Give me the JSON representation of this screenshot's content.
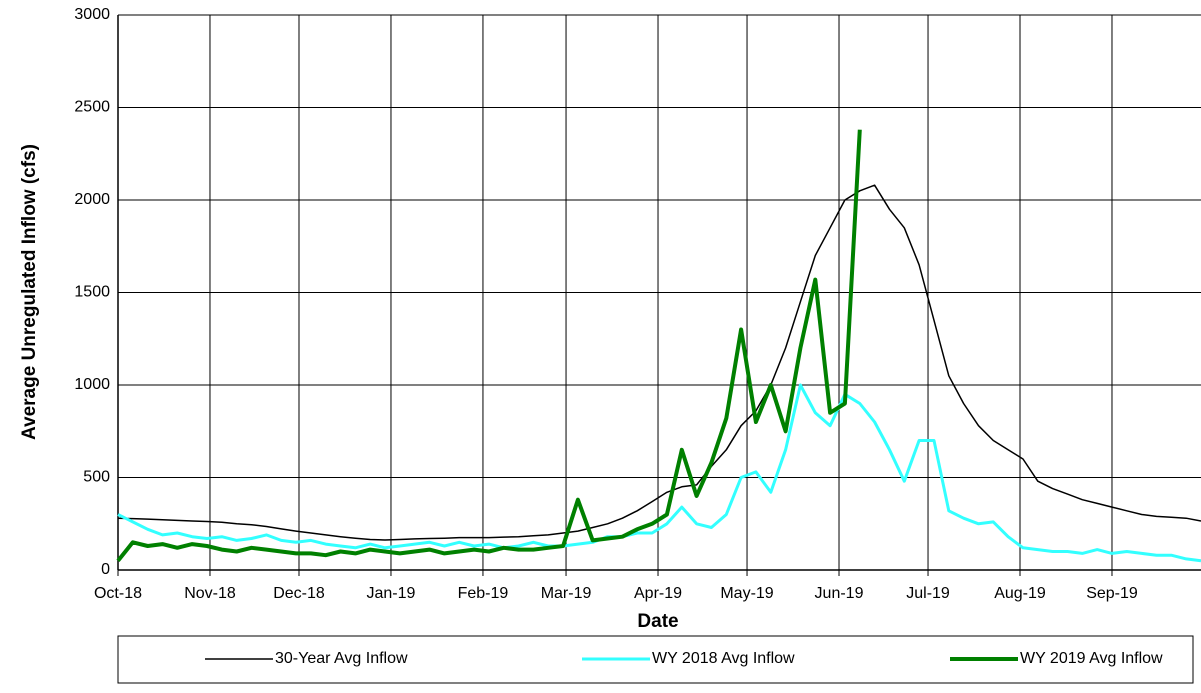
{
  "chart_data": {
    "type": "line",
    "ylabel": "Average Unregulated Inflow (cfs)",
    "xlabel": "Date",
    "xlim": [
      0,
      365
    ],
    "xticks": [
      {
        "value": 0,
        "label": "Oct-18"
      },
      {
        "value": 31,
        "label": "Nov-18"
      },
      {
        "value": 61,
        "label": "Dec-18"
      },
      {
        "value": 92,
        "label": "Jan-19"
      },
      {
        "value": 123,
        "label": "Feb-19"
      },
      {
        "value": 151,
        "label": "Mar-19"
      },
      {
        "value": 182,
        "label": "Apr-19"
      },
      {
        "value": 212,
        "label": "May-19"
      },
      {
        "value": 243,
        "label": "Jun-19"
      },
      {
        "value": 273,
        "label": "Jul-19"
      },
      {
        "value": 304,
        "label": "Aug-19"
      },
      {
        "value": 335,
        "label": "Sep-19"
      }
    ],
    "ylim": [
      0,
      3000
    ],
    "yticks": [
      0,
      500,
      1000,
      1500,
      2000,
      2500,
      3000
    ],
    "grid": true,
    "legend": "bottom",
    "x": [
      0,
      5,
      10,
      15,
      20,
      25,
      30,
      35,
      40,
      45,
      50,
      55,
      60,
      65,
      70,
      75,
      80,
      85,
      90,
      95,
      100,
      105,
      110,
      115,
      120,
      125,
      130,
      135,
      140,
      145,
      150,
      155,
      160,
      165,
      170,
      175,
      180,
      185,
      190,
      195,
      200,
      205,
      210,
      215,
      220,
      225,
      230,
      235,
      240,
      245,
      250,
      255,
      260,
      265,
      270,
      275,
      280,
      285,
      290,
      295,
      300,
      305,
      310,
      315,
      320,
      325,
      330,
      335,
      340,
      345,
      350,
      355,
      360,
      365
    ],
    "series": [
      {
        "name": "30-Year Avg Inflow",
        "color": "#000000",
        "width": 1.5,
        "values": [
          280,
          278,
          275,
          272,
          268,
          265,
          262,
          258,
          250,
          245,
          235,
          222,
          210,
          200,
          190,
          180,
          172,
          165,
          162,
          165,
          168,
          170,
          172,
          175,
          175,
          175,
          178,
          180,
          185,
          190,
          200,
          210,
          230,
          250,
          280,
          320,
          370,
          420,
          450,
          460,
          560,
          650,
          780,
          860,
          1000,
          1200,
          1450,
          1700,
          1850,
          2000,
          2050,
          2080,
          1950,
          1850,
          1650,
          1350,
          1050,
          900,
          780,
          700,
          650,
          600,
          480,
          440,
          410,
          380,
          360,
          340,
          320,
          300,
          290,
          285,
          280,
          265
        ]
      },
      {
        "name": "WY 2018 Avg Inflow",
        "color": "#33ffff",
        "width": 3,
        "values": [
          300,
          260,
          220,
          190,
          200,
          180,
          170,
          180,
          160,
          170,
          190,
          160,
          150,
          160,
          140,
          130,
          120,
          140,
          120,
          130,
          140,
          150,
          130,
          150,
          130,
          140,
          120,
          130,
          150,
          130,
          130,
          140,
          150,
          180,
          180,
          200,
          200,
          250,
          340,
          250,
          230,
          300,
          500,
          530,
          420,
          650,
          1000,
          850,
          780,
          950,
          900,
          800,
          650,
          480,
          700,
          700,
          320,
          280,
          250,
          260,
          180,
          120,
          110,
          100,
          100,
          90,
          110,
          90,
          100,
          90,
          80,
          80,
          60,
          50
        ]
      },
      {
        "name": "WY 2019 Avg Inflow",
        "color": "#008000",
        "width": 4,
        "values": [
          50,
          150,
          130,
          140,
          120,
          140,
          130,
          110,
          100,
          120,
          110,
          100,
          90,
          90,
          80,
          100,
          90,
          110,
          100,
          90,
          100,
          110,
          90,
          100,
          110,
          100,
          120,
          110,
          110,
          120,
          130,
          380,
          160,
          170,
          180,
          220,
          250,
          300,
          650,
          400,
          580,
          820,
          1300,
          800,
          1000,
          750,
          1200,
          1570,
          850,
          900,
          2380,
          null,
          null,
          null,
          null,
          null,
          null,
          null,
          null,
          null,
          null,
          null,
          null,
          null,
          null,
          null,
          null,
          null,
          null,
          null,
          null,
          null,
          null,
          null
        ]
      }
    ]
  }
}
